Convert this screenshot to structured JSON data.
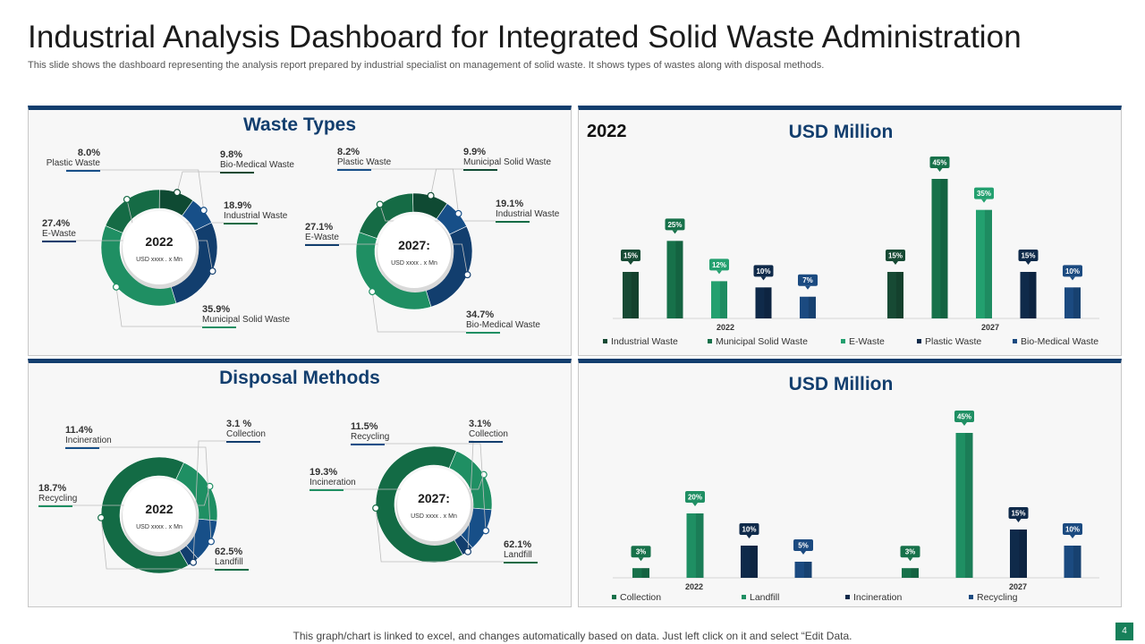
{
  "title": "Industrial Analysis Dashboard for Integrated Solid Waste Administration",
  "subtitle": "This slide shows the dashboard representing the analysis report prepared by industrial specialist on management of solid waste. It shows types of wastes along with disposal methods.",
  "footer": "This graph/chart is linked to excel,  and changes automatically based on data. Just left click on it and select “Edit Data.",
  "page_number": "4",
  "panels": {
    "waste_types_title": "Waste Types",
    "disposal_title": "Disposal Methods",
    "usd_title_1": "USD Million",
    "usd_title_2": "USD Million",
    "year_label": "2022"
  },
  "chart_data": [
    {
      "type": "pie",
      "variant": "donut",
      "title": "Waste Types 2022",
      "center_label": "2022",
      "center_sub": "USD xxxx  . x Mn",
      "slices": [
        {
          "label": "Municipal  Solid Waste",
          "value": 35.9,
          "value_label": "35.9%",
          "color": "#1f8f63"
        },
        {
          "label": "Industrial Waste",
          "value": 18.9,
          "value_label": "18.9%",
          "color": "#156b45"
        },
        {
          "label": "Bio-Medical Waste",
          "value": 9.8,
          "value_label": "9.8%",
          "color": "#0f4a33"
        },
        {
          "label": "Plastic Waste",
          "value": 8.0,
          "value_label": "8.0%",
          "color": "#174f88"
        },
        {
          "label": "E-Waste",
          "value": 27.4,
          "value_label": "27.4%",
          "color": "#123e6e"
        }
      ]
    },
    {
      "type": "pie",
      "variant": "donut",
      "title": "Waste Types 2027",
      "center_label": "2027:",
      "center_sub": "USD xxxx  . x Mn",
      "slices": [
        {
          "label": "Bio-Medical Waste",
          "value": 34.7,
          "value_label": "34.7%",
          "color": "#1f8f63"
        },
        {
          "label": "Industrial Waste",
          "value": 19.1,
          "value_label": "19.1%",
          "color": "#156b45"
        },
        {
          "label": "Municipal Solid Waste",
          "value": 9.9,
          "value_label": "9.9%",
          "color": "#0f4a33"
        },
        {
          "label": "Plastic Waste",
          "value": 8.2,
          "value_label": "8.2%",
          "color": "#174f88"
        },
        {
          "label": "E-Waste",
          "value": 27.1,
          "value_label": "27.1%",
          "color": "#123e6e"
        }
      ]
    },
    {
      "type": "pie",
      "variant": "donut",
      "title": "Disposal Methods 2022",
      "center_label": "2022",
      "center_sub": "USD xxxx  . x Mn",
      "slices": [
        {
          "label": "Landfill",
          "value": 62.5,
          "value_label": "62.5%",
          "color": "#136b45"
        },
        {
          "label": "Recycling",
          "value": 18.7,
          "value_label": "18.7%",
          "color": "#1f8f63"
        },
        {
          "label": "Incineration",
          "value": 11.4,
          "value_label": "11.4%",
          "color": "#174f88"
        },
        {
          "label": "Collection",
          "value": 3.1,
          "value_label": "3.1 %",
          "color": "#123e6e"
        }
      ]
    },
    {
      "type": "pie",
      "variant": "donut",
      "title": "Disposal Methods 2027",
      "center_label": "2027:",
      "center_sub": "USD xxxx  . x Mn",
      "slices": [
        {
          "label": "Landfill",
          "value": 62.1,
          "value_label": "62.1%",
          "color": "#136b45"
        },
        {
          "label": "Incineration",
          "value": 19.3,
          "value_label": "19.3%",
          "color": "#1f8f63"
        },
        {
          "label": "Recycling",
          "value": 11.5,
          "value_label": "11.5%",
          "color": "#174f88"
        },
        {
          "label": "Collection",
          "value": 3.1,
          "value_label": "3.1%",
          "color": "#123e6e"
        }
      ]
    },
    {
      "type": "bar",
      "title": "USD Million",
      "categories": [
        "2022",
        "2027"
      ],
      "ylim": [
        0,
        50
      ],
      "series": [
        {
          "name": "Industrial Waste",
          "color": "#174a34",
          "values": [
            15,
            15
          ],
          "labels": [
            "15%",
            "15%"
          ]
        },
        {
          "name": "Municipal Solid Waste",
          "color": "#17714a",
          "values": [
            25,
            45
          ],
          "labels": [
            "25%",
            "45%"
          ]
        },
        {
          "name": "E-Waste",
          "color": "#23a06f",
          "values": [
            12,
            35
          ],
          "labels": [
            "12%",
            "35%"
          ]
        },
        {
          "name": "Plastic Waste",
          "color": "#0f2a4a",
          "values": [
            10,
            15
          ],
          "labels": [
            "10%",
            "15%"
          ]
        },
        {
          "name": "Bio-Medical Waste",
          "color": "#1b4a80",
          "values": [
            7,
            10
          ],
          "labels": [
            "7%",
            "10%"
          ]
        }
      ]
    },
    {
      "type": "bar",
      "title": "USD Million",
      "categories": [
        "2022",
        "2027"
      ],
      "ylim": [
        0,
        50
      ],
      "series": [
        {
          "name": "Collection",
          "color": "#17714a",
          "values": [
            3,
            3
          ],
          "labels": [
            "3%",
            "3%"
          ]
        },
        {
          "name": "Landfill",
          "color": "#1f8f63",
          "values": [
            20,
            45
          ],
          "labels": [
            "20%",
            "45%"
          ]
        },
        {
          "name": "Incineration",
          "color": "#0f2a4a",
          "values": [
            10,
            15
          ],
          "labels": [
            "10%",
            "15%"
          ]
        },
        {
          "name": "Recycling",
          "color": "#1b4a80",
          "values": [
            5,
            10
          ],
          "labels": [
            "5%",
            "10%"
          ]
        }
      ]
    }
  ]
}
